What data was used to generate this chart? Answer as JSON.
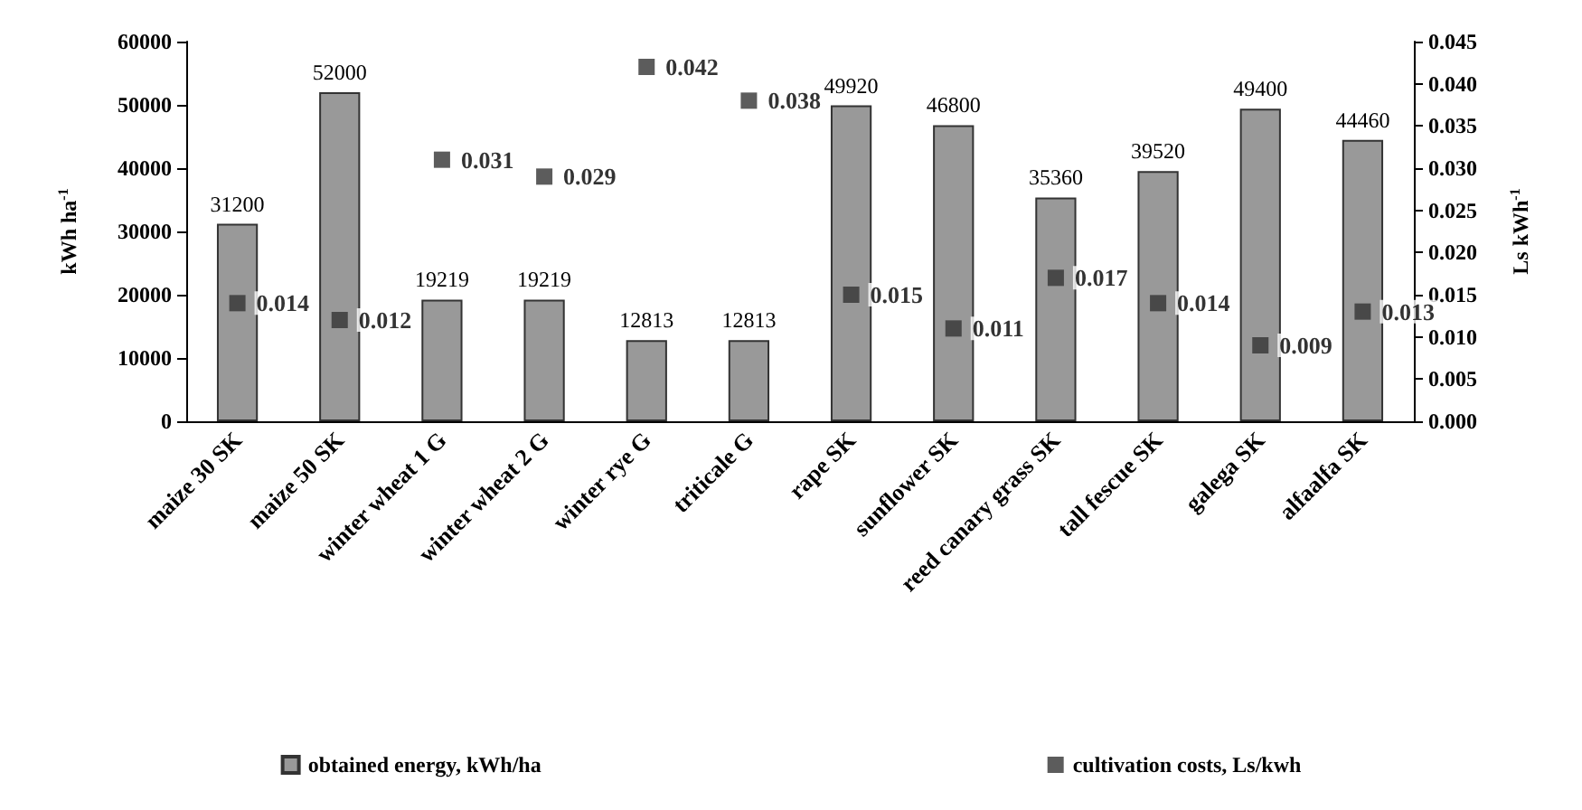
{
  "chart_data": {
    "type": "bar",
    "categories": [
      "maize 30 SK",
      "maize 50 SK",
      "winter wheat 1 G",
      "winter wheat 2 G",
      "winter rye G",
      "triticale G",
      "rape SK",
      "sunflower SK",
      "reed canary grass SK",
      "tall fescue SK",
      "galega SK",
      "alfaalfa SK"
    ],
    "series": [
      {
        "name": "obtained energy, kWh/ha",
        "color": "#999999",
        "values": [
          31200,
          52000,
          19219,
          19219,
          12813,
          12813,
          49920,
          46800,
          35360,
          39520,
          49400,
          44460
        ]
      },
      {
        "name": "cultivation costs, Ls/kwh",
        "type": "scatter",
        "axis": "y2",
        "color": "#333333",
        "values": [
          0.014,
          0.012,
          0.031,
          0.029,
          0.042,
          0.038,
          0.015,
          0.011,
          0.017,
          0.014,
          0.009,
          0.013
        ]
      }
    ],
    "ylabel": "kWh ha$^{-1}$",
    "y2label": "Ls kWh$^{-1}$",
    "ylim": [
      0,
      60000
    ],
    "yticks": [
      0,
      10000,
      20000,
      30000,
      40000,
      50000,
      60000
    ],
    "y2lim": [
      0,
      0.045
    ],
    "y2ticks": [
      {
        "value": 0,
        "label": "0.000"
      },
      {
        "value": 0.005,
        "label": "0.005"
      },
      {
        "value": 0.01,
        "label": "0.010"
      },
      {
        "value": 0.015,
        "label": "0.015"
      },
      {
        "value": 0.02,
        "label": "0.020"
      },
      {
        "value": 0.025,
        "label": "0.025"
      },
      {
        "value": 0.03,
        "label": "0.030"
      },
      {
        "value": 0.035,
        "label": "0.035"
      },
      {
        "value": 0.04,
        "label": "0.040"
      },
      {
        "value": 0.045,
        "label": "0.045"
      }
    ],
    "data_labels": true,
    "legend": "bottom",
    "marker": "square",
    "grid": false
  }
}
